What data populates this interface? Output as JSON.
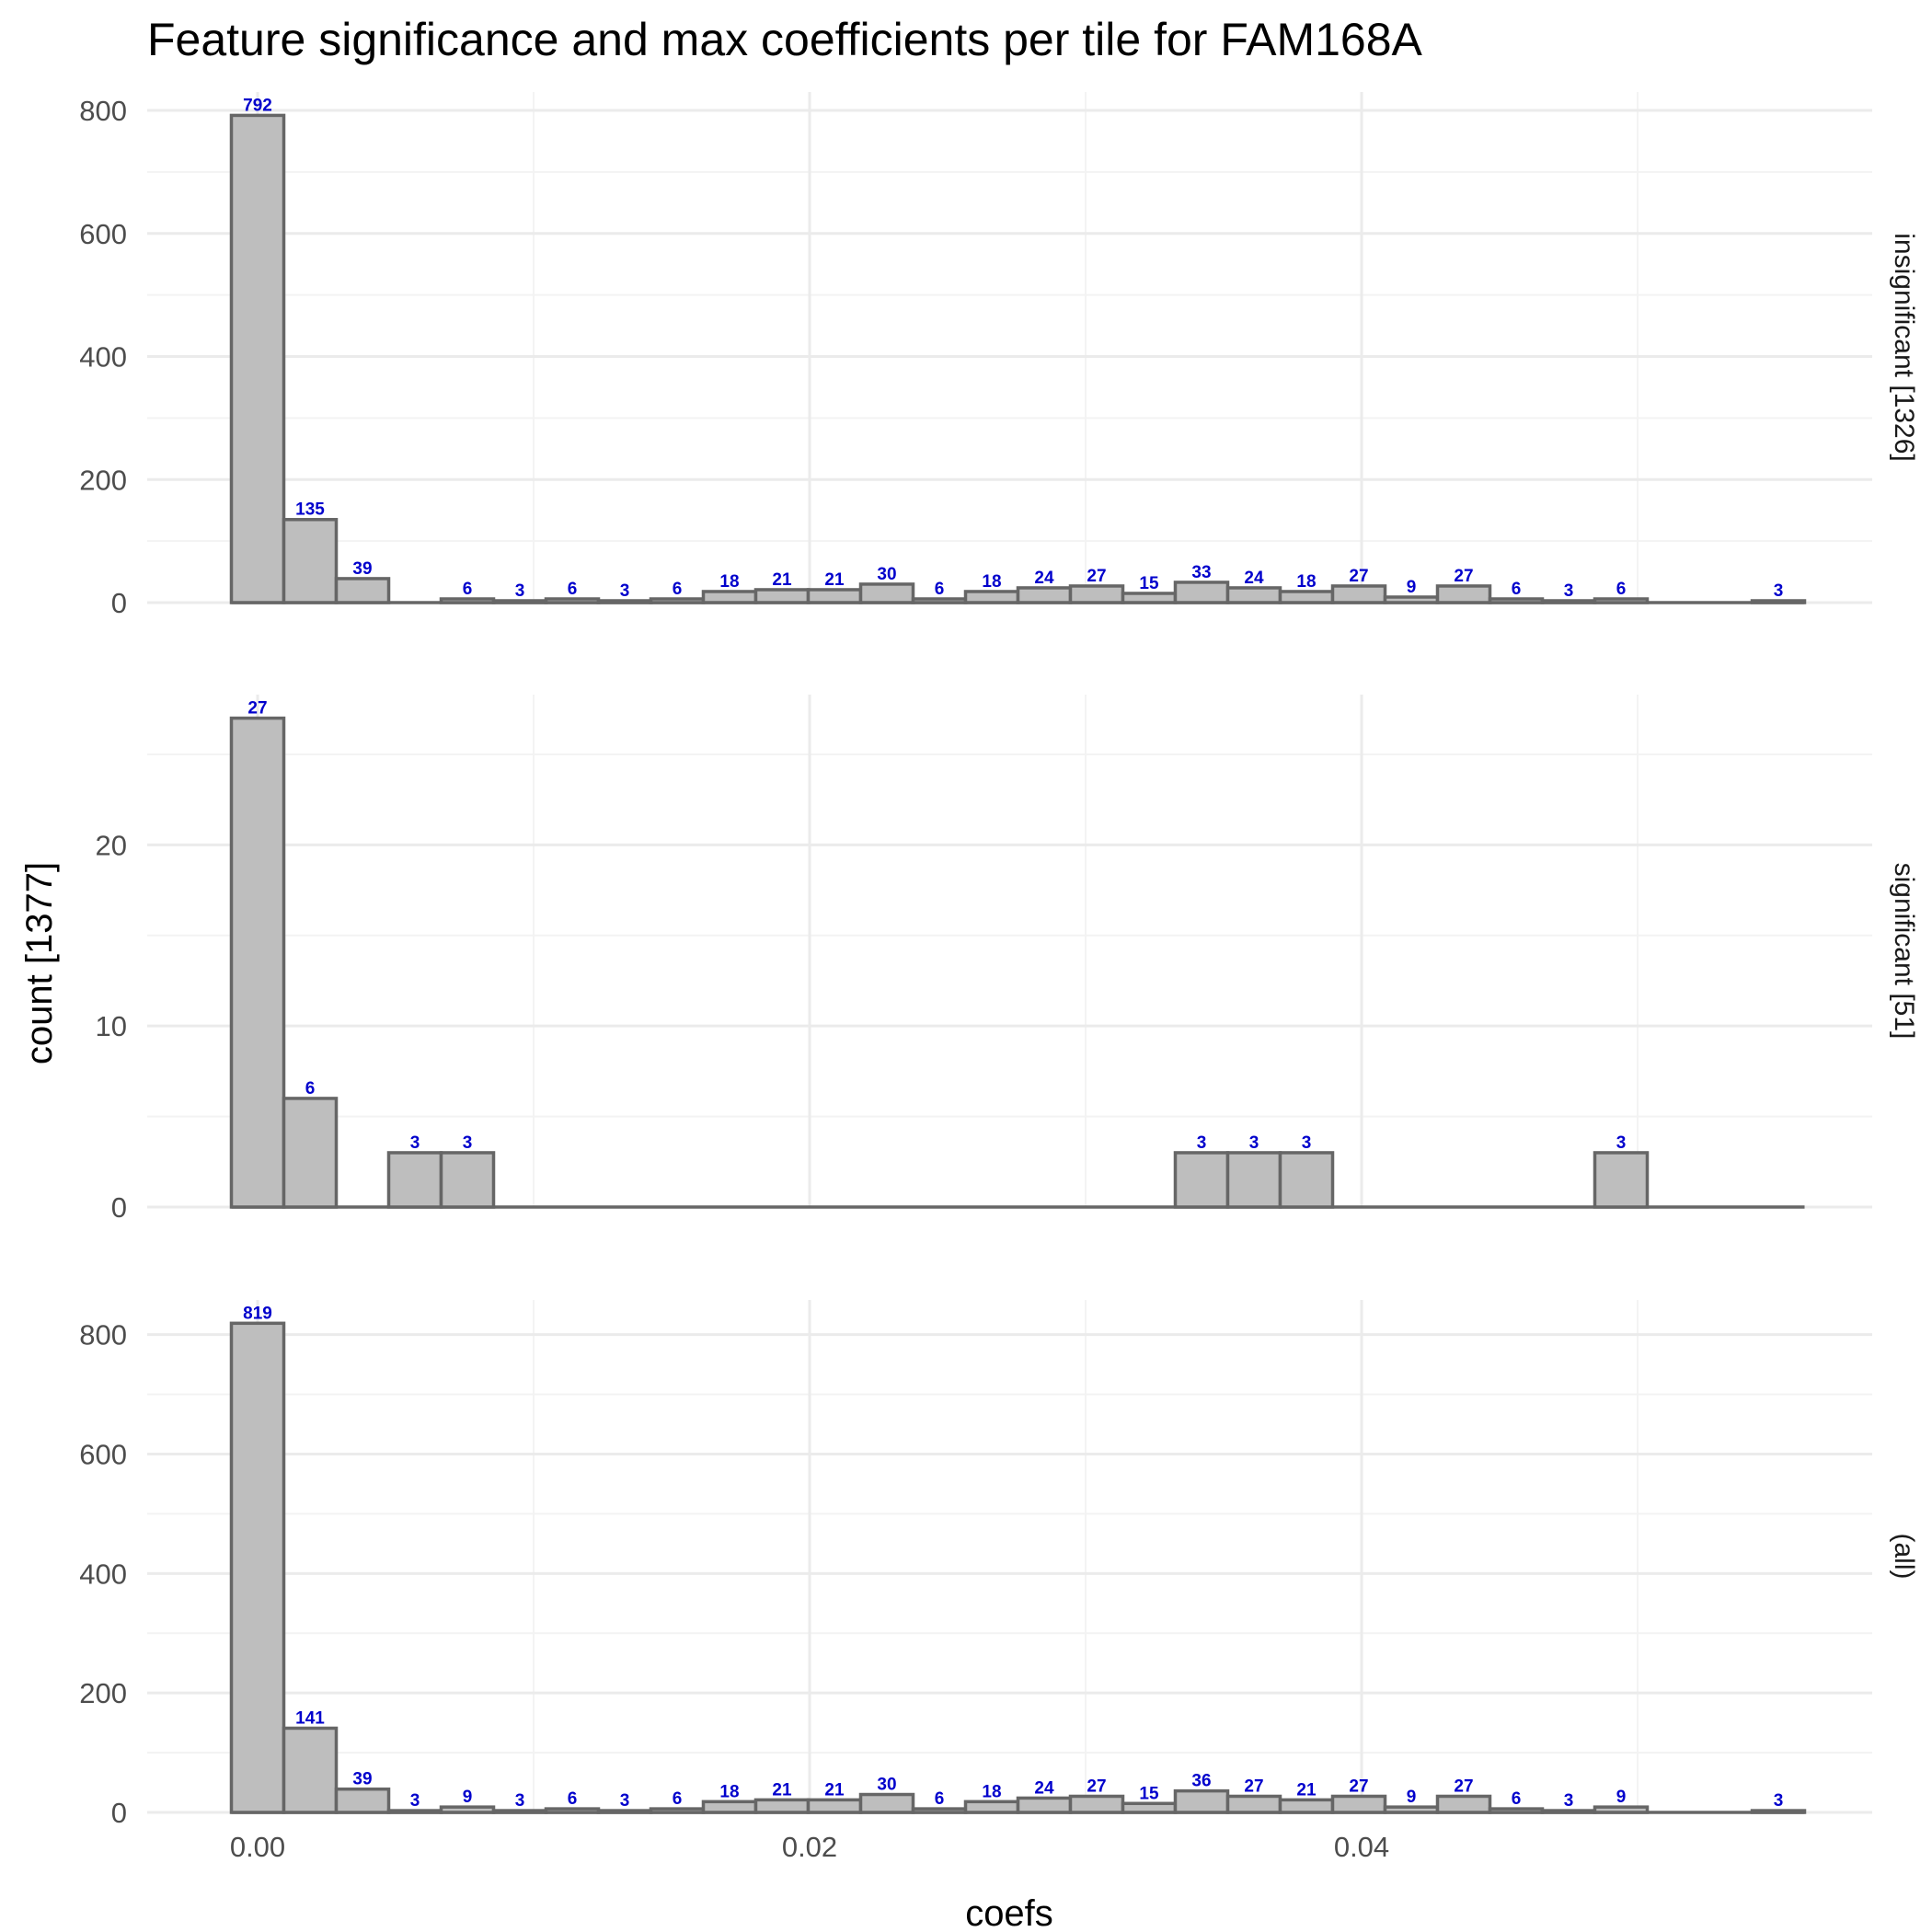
{
  "chart_data": {
    "type": "bar",
    "title": "Feature significance and max coefficients per tile for FAM168A",
    "xlabel": "coefs",
    "ylabel": "count [1377]",
    "xlim": [
      -0.004,
      0.0585
    ],
    "x_ticks": [
      0.0,
      0.02,
      0.04
    ],
    "x_tick_labels": [
      "0.00",
      "0.02",
      "0.04"
    ],
    "grid": true,
    "bin_centers": [
      0.0,
      0.0019,
      0.0038,
      0.0057,
      0.0076,
      0.0095,
      0.0114,
      0.0133,
      0.0152,
      0.0171,
      0.019,
      0.0209,
      0.0228,
      0.0247,
      0.0266,
      0.0285,
      0.0304,
      0.0323,
      0.0342,
      0.0361,
      0.038,
      0.0399,
      0.0418,
      0.0437,
      0.0456,
      0.0475,
      0.0494,
      0.0513,
      0.0532,
      0.0551
    ],
    "bin_width": 0.0019,
    "panels": [
      {
        "strip": "insignificant [1326]",
        "ylim": [
          0,
          830
        ],
        "y_ticks": [
          0,
          200,
          400,
          600,
          800
        ],
        "y_tick_labels": [
          "0",
          "200",
          "400",
          "600",
          "800"
        ],
        "values": [
          792,
          135,
          39,
          0,
          6,
          3,
          6,
          3,
          6,
          18,
          21,
          21,
          30,
          6,
          18,
          24,
          27,
          15,
          33,
          24,
          18,
          27,
          9,
          27,
          6,
          3,
          6,
          0,
          0,
          3
        ],
        "labels": [
          "792",
          "135",
          "39",
          "",
          "6",
          "3",
          "6",
          "3",
          "6",
          "18",
          "21",
          "21",
          "30",
          "6",
          "18",
          "24",
          "27",
          "15",
          "33",
          "24",
          "18",
          "27",
          "9",
          "27",
          "6",
          "3",
          "6",
          "",
          "",
          "3"
        ]
      },
      {
        "strip": "significant [51]",
        "ylim": [
          0,
          28.3
        ],
        "y_ticks": [
          0,
          10,
          20
        ],
        "y_tick_labels": [
          "0",
          "10",
          "20"
        ],
        "values": [
          27,
          6,
          0,
          3,
          3,
          0,
          0,
          0,
          0,
          0,
          0,
          0,
          0,
          0,
          0,
          0,
          0,
          0,
          3,
          3,
          3,
          0,
          0,
          0,
          0,
          0,
          3,
          0,
          0,
          0
        ],
        "labels": [
          "27",
          "6",
          "",
          "3",
          "3",
          "",
          "",
          "",
          "",
          "",
          "",
          "",
          "",
          "",
          "",
          "",
          "",
          "",
          "3",
          "3",
          "3",
          "",
          "",
          "",
          "",
          "",
          "3",
          "",
          "",
          ""
        ]
      },
      {
        "strip": "(all)",
        "ylim": [
          0,
          858
        ],
        "y_ticks": [
          0,
          200,
          400,
          600,
          800
        ],
        "y_tick_labels": [
          "0",
          "200",
          "400",
          "600",
          "800"
        ],
        "values": [
          819,
          141,
          39,
          3,
          9,
          3,
          6,
          3,
          6,
          18,
          21,
          21,
          30,
          6,
          18,
          24,
          27,
          15,
          36,
          27,
          21,
          27,
          9,
          27,
          6,
          3,
          9,
          0,
          0,
          3
        ],
        "labels": [
          "819",
          "141",
          "39",
          "3",
          "9",
          "3",
          "6",
          "3",
          "6",
          "18",
          "21",
          "21",
          "30",
          "6",
          "18",
          "24",
          "27",
          "15",
          "36",
          "27",
          "21",
          "27",
          "9",
          "27",
          "6",
          "3",
          "9",
          "",
          "",
          "3"
        ]
      }
    ]
  }
}
